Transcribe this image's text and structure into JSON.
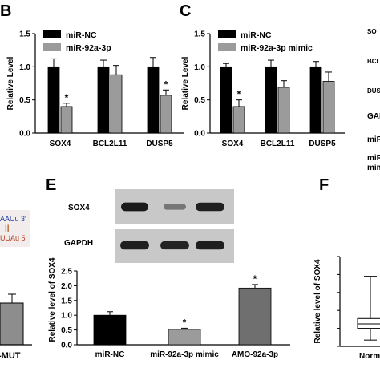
{
  "panels": {
    "B": {
      "letter": "B"
    },
    "C": {
      "letter": "C"
    },
    "E": {
      "letter": "E"
    },
    "F": {
      "letter": "F"
    }
  },
  "cutoff": {
    "left_seq_top": "AAUu 3'",
    "left_bars": "||",
    "left_seq_bottom": "UUAu 5'",
    "left_xlabel": "-MUT",
    "right_labels": [
      "SO",
      "BCL",
      "DUS",
      "GAF",
      "miR",
      "miR-9",
      "mim"
    ]
  },
  "blot": {
    "labels": [
      "SOX4",
      "GAPDH"
    ],
    "sox4_intensity": [
      0.95,
      0.45,
      0.92
    ],
    "gapdh_intensity": [
      0.92,
      0.9,
      0.93
    ]
  },
  "chart_data": [
    {
      "panel": "B",
      "type": "bar",
      "title": "",
      "xlabel": "",
      "ylabel": "Relative Level",
      "categories": [
        "SOX4",
        "BCL2L11",
        "DUSP5"
      ],
      "series": [
        {
          "name": "miR-NC",
          "color": "#000000",
          "values": [
            1.0,
            1.0,
            1.0
          ],
          "errors": [
            0.12,
            0.1,
            0.14
          ],
          "sig": [
            false,
            false,
            false
          ]
        },
        {
          "name": "miR-92a-3p",
          "color": "#9b9b9b",
          "values": [
            0.4,
            0.88,
            0.57
          ],
          "errors": [
            0.05,
            0.14,
            0.08
          ],
          "sig": [
            true,
            false,
            true
          ]
        }
      ],
      "ylim": [
        0,
        1.5
      ],
      "yticks": [
        "0.0",
        "0.5",
        "1.0",
        "1.5"
      ],
      "sig_label": "*",
      "legend": "top-left"
    },
    {
      "panel": "C",
      "type": "bar",
      "title": "",
      "xlabel": "",
      "ylabel": "Relative Level",
      "categories": [
        "SOX4",
        "BCL2L11",
        "DUSP5"
      ],
      "series": [
        {
          "name": "miR-NC",
          "color": "#000000",
          "values": [
            1.0,
            1.0,
            1.0
          ],
          "errors": [
            0.05,
            0.1,
            0.08
          ],
          "sig": [
            false,
            false,
            false
          ]
        },
        {
          "name": "miR-92a-3p mimic",
          "color": "#9b9b9b",
          "values": [
            0.4,
            0.69,
            0.78
          ],
          "errors": [
            0.1,
            0.1,
            0.14
          ],
          "sig": [
            true,
            false,
            false
          ]
        }
      ],
      "ylim": [
        0,
        1.5
      ],
      "yticks": [
        "0.0",
        "0.5",
        "1.0",
        "1.5"
      ],
      "sig_label": "*",
      "legend": "top-left"
    },
    {
      "panel": "E",
      "type": "bar",
      "title": "",
      "xlabel": "",
      "ylabel": "Relative level of SOX4",
      "categories": [
        "miR-NC",
        "miR-92a-3p mimic",
        "AMO-92a-3p"
      ],
      "values": [
        1.0,
        0.52,
        1.92
      ],
      "errors": [
        0.12,
        0.04,
        0.12
      ],
      "colors": [
        "#000000",
        "#9b9b9b",
        "#6f6f6f"
      ],
      "sig": [
        false,
        true,
        true
      ],
      "ylim": [
        0,
        2.5
      ],
      "yticks": [
        "0.0",
        "0.5",
        "1.0",
        "1.5",
        "2.0",
        "2.5"
      ],
      "sig_label": "*"
    },
    {
      "panel": "F",
      "type": "box",
      "title": "",
      "xlabel": "",
      "ylabel": "Relative level of SOX4",
      "categories": [
        "Norm"
      ],
      "box": {
        "q1": 1.0,
        "median": 1.25,
        "q3": 1.55,
        "whisker_low": 0.35,
        "whisker_high": 3.9
      },
      "ylim": [
        0,
        5
      ]
    }
  ]
}
